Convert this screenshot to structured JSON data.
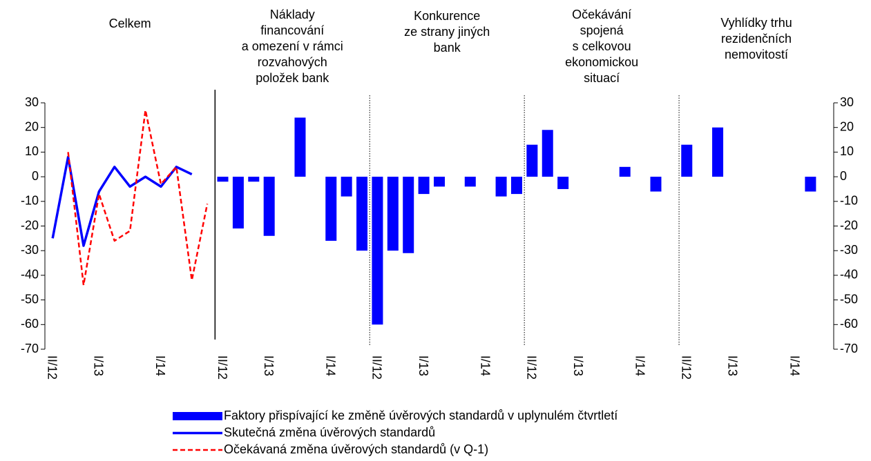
{
  "chart_data": {
    "type": "bar",
    "panels": [
      {
        "title": [
          "Celkem"
        ]
      },
      {
        "title": [
          "Náklady",
          "financování",
          "a omezení v rámci",
          "rozvahových",
          "položek bank"
        ]
      },
      {
        "title": [
          "Konkurence",
          "ze strany jiných",
          "bank"
        ]
      },
      {
        "title": [
          "Očekávání",
          "spojená",
          "s celkovou",
          "ekonomickou",
          "situací"
        ]
      },
      {
        "title": [
          "Vyhlídky trhu",
          "rezidenčních",
          "nemovitostí"
        ]
      }
    ],
    "categories": [
      "II/12",
      null,
      null,
      "I/13",
      null,
      null,
      null,
      "I/14",
      null,
      null,
      null,
      "II/12",
      null,
      null,
      "I/13",
      null,
      null,
      null,
      "I/14",
      null,
      null,
      "II/12",
      null,
      null,
      "I/13",
      null,
      null,
      null,
      "I/14",
      null,
      null,
      "II/12",
      null,
      null,
      "I/13",
      null,
      null,
      null,
      "I/14",
      null,
      null,
      "II/12",
      null,
      null,
      "I/13",
      null,
      null,
      null,
      "I/14",
      null,
      null
    ],
    "series": [
      {
        "name": "Faktory přispívající ke změně úvěrových standardů v uplynulém čtvrtletí",
        "type": "bar",
        "color": "#0000ff",
        "values": [
          null,
          null,
          null,
          null,
          null,
          null,
          null,
          null,
          null,
          null,
          null,
          -2,
          -21,
          -2,
          -24,
          null,
          24,
          null,
          -26,
          -8,
          -30,
          -60,
          -30,
          -31,
          -7,
          -4,
          null,
          -4,
          null,
          -8,
          -7,
          13,
          19,
          -5,
          null,
          null,
          null,
          4,
          null,
          -6,
          null,
          13,
          null,
          20,
          null,
          null,
          null,
          null,
          null,
          -6,
          null
        ]
      },
      {
        "name": "Skutečná změna úvěrových standardů",
        "type": "line",
        "color": "#0000ff",
        "dash": false,
        "values": [
          -25,
          8,
          -28,
          -6,
          4,
          -4,
          0,
          -4,
          4,
          1,
          null,
          null,
          null,
          null,
          null,
          null,
          null,
          null,
          null,
          null,
          null,
          null,
          null,
          null,
          null,
          null,
          null,
          null,
          null,
          null,
          null,
          null,
          null,
          null,
          null,
          null,
          null,
          null,
          null,
          null,
          null,
          null,
          null,
          null,
          null,
          null,
          null,
          null,
          null,
          null,
          null
        ]
      },
      {
        "name": "Očekávaná změna úvěrových standardů (v Q-1)",
        "type": "line",
        "color": "#ff0000",
        "dash": true,
        "values": [
          null,
          10,
          -44,
          -7,
          -26,
          -22,
          27,
          -3,
          4,
          -42,
          -11,
          null,
          null,
          null,
          null,
          null,
          null,
          null,
          null,
          null,
          null,
          null,
          null,
          null,
          null,
          null,
          null,
          null,
          null,
          null,
          null,
          null,
          null,
          null,
          null,
          null,
          null,
          null,
          null,
          null,
          null,
          null,
          null,
          null,
          null,
          null,
          null,
          null,
          null,
          null,
          null
        ]
      }
    ],
    "ylim": [
      -70,
      30
    ],
    "yticks": [
      -70,
      -60,
      -50,
      -40,
      -30,
      -20,
      -10,
      0,
      10,
      20,
      30
    ]
  }
}
